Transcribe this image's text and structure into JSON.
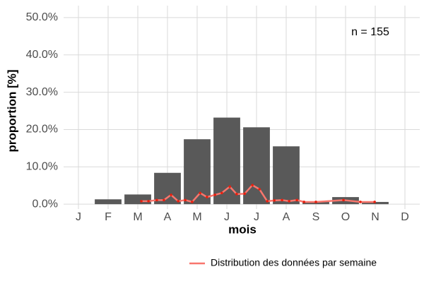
{
  "chart_data": {
    "type": "bar",
    "x_label": "mois",
    "y_label": "proportion [%]",
    "annotation": "n = 155",
    "categories": [
      "J",
      "F",
      "M",
      "A",
      "M",
      "J",
      "J",
      "A",
      "S",
      "O",
      "N",
      "D"
    ],
    "values": [
      0,
      1.3,
      2.6,
      8.4,
      17.4,
      23.2,
      20.6,
      15.5,
      0.6,
      1.9,
      0.6,
      0
    ],
    "color": "#595959",
    "ylim": [
      -1.3,
      53.2
    ],
    "yticks": [
      {
        "value": 0,
        "label": "0.0%"
      },
      {
        "value": 10,
        "label": "10.0%"
      },
      {
        "value": 20,
        "label": "20.0%"
      },
      {
        "value": 30,
        "label": "30.0%"
      },
      {
        "value": 40,
        "label": "40.0%"
      },
      {
        "value": 50,
        "label": "50.0%"
      }
    ],
    "grid": true,
    "legend": "bottom-right",
    "series": [
      {
        "name": "Distribution des données par semaine",
        "color": "#f8766d",
        "type": "line",
        "x": [
          3.12,
          3.36,
          3.64,
          3.88,
          4.12,
          4.36,
          4.6,
          4.83,
          5.1,
          5.33,
          5.6,
          5.83,
          6.1,
          6.33,
          6.6,
          6.86,
          7.1,
          7.36,
          7.6,
          7.86,
          8.1,
          8.36,
          8.6,
          9.0,
          9.93,
          10.5,
          10.98
        ],
        "values": [
          0.8,
          0.8,
          1.1,
          1.1,
          2.5,
          0.8,
          1.1,
          0.6,
          3.0,
          1.9,
          2.5,
          3.0,
          4.7,
          2.7,
          2.8,
          5.1,
          4.0,
          0.8,
          1.0,
          1.1,
          0.8,
          1.1,
          0.6,
          0.6,
          1.1,
          0.6,
          0.6
        ]
      }
    ]
  }
}
